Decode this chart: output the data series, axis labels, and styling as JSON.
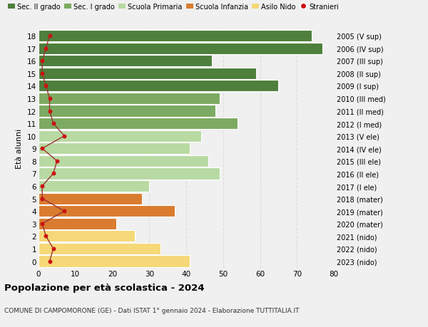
{
  "ages": [
    18,
    17,
    16,
    15,
    14,
    13,
    12,
    11,
    10,
    9,
    8,
    7,
    6,
    5,
    4,
    3,
    2,
    1,
    0
  ],
  "right_labels": [
    "2005 (V sup)",
    "2006 (IV sup)",
    "2007 (III sup)",
    "2008 (II sup)",
    "2009 (I sup)",
    "2010 (III med)",
    "2011 (II med)",
    "2012 (I med)",
    "2013 (V ele)",
    "2014 (IV ele)",
    "2015 (III ele)",
    "2016 (II ele)",
    "2017 (I ele)",
    "2018 (mater)",
    "2019 (mater)",
    "2020 (mater)",
    "2021 (nido)",
    "2022 (nido)",
    "2023 (nido)"
  ],
  "bar_values": [
    74,
    77,
    47,
    59,
    65,
    49,
    48,
    54,
    44,
    41,
    46,
    49,
    30,
    28,
    37,
    21,
    26,
    33,
    41
  ],
  "bar_colors": [
    "#4e7f3c",
    "#4e7f3c",
    "#4e7f3c",
    "#4e7f3c",
    "#4e7f3c",
    "#7daa62",
    "#7daa62",
    "#7daa62",
    "#b8d9a2",
    "#b8d9a2",
    "#b8d9a2",
    "#b8d9a2",
    "#b8d9a2",
    "#d97c30",
    "#d97c30",
    "#d97c30",
    "#f5d878",
    "#f5d878",
    "#f5d878"
  ],
  "stranieri_values": [
    3,
    2,
    1,
    1,
    2,
    3,
    3,
    4,
    7,
    1,
    5,
    4,
    1,
    1,
    7,
    1,
    2,
    4,
    3
  ],
  "ylabel_left": "Età alunni",
  "xlim": [
    0,
    80
  ],
  "title": "Popolazione per età scolastica - 2024",
  "subtitle": "COMUNE DI CAMPOMORONE (GE) - Dati ISTAT 1° gennaio 2024 - Elaborazione TUTTITALIA.IT",
  "legend_labels": [
    "Sec. II grado",
    "Sec. I grado",
    "Scuola Primaria",
    "Scuola Infanzia",
    "Asilo Nido",
    "Stranieri"
  ],
  "legend_colors": [
    "#4e7f3c",
    "#7daa62",
    "#b8d9a2",
    "#d97c30",
    "#f5d878",
    "#cc1111"
  ],
  "bg_color": "#f0f0f0",
  "bar_height": 0.92,
  "stranieri_line_color": "#993333",
  "stranieri_dot_color": "#cc1111",
  "grid_color": "#dddddd"
}
